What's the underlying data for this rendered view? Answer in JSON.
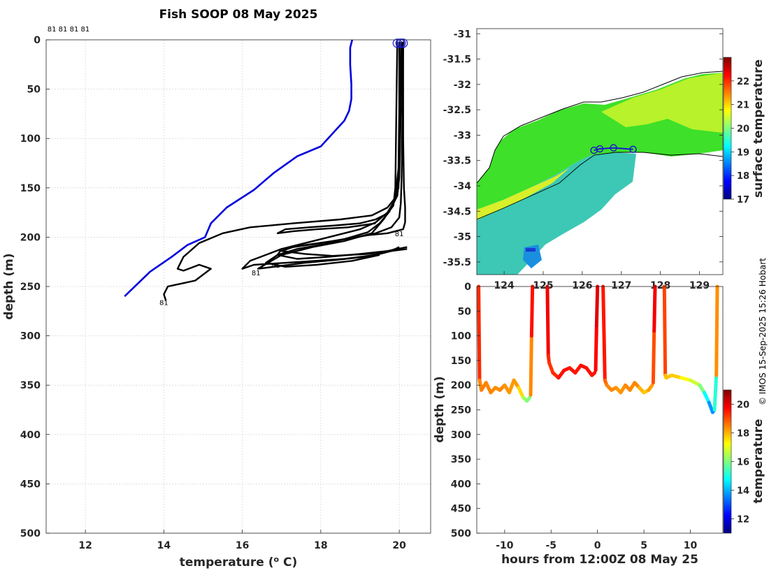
{
  "title": "Fish SOOP 08 May 2025",
  "credit": "© IMOS 15-Sep-2025 15:26 Hobart",
  "colors": {
    "climatology_line": "#0000dd",
    "profile_line": "#000000",
    "track_marker": "#1a1acc",
    "land": "#ffffff",
    "coast": "#000000"
  },
  "colormap": [
    "#00007f",
    "#0000ff",
    "#007fff",
    "#00ffff",
    "#7fff7f",
    "#ffff00",
    "#ff7f00",
    "#ff0000",
    "#7f0000"
  ],
  "chart_data": [
    {
      "id": "profile",
      "type": "line",
      "title": "Fish SOOP 08 May 2025",
      "xlabel": "temperature (o C)",
      "ylabel": "depth (m)",
      "xlim": [
        11,
        20.8
      ],
      "ylim": [
        500,
        0
      ],
      "xticks": [
        12,
        14,
        16,
        18,
        20
      ],
      "yticks": [
        0,
        50,
        100,
        150,
        200,
        250,
        300,
        350,
        400,
        450,
        500
      ],
      "grid": true,
      "top_label": "81 81 81 81",
      "profile_labels": [
        {
          "text": "81",
          "x": 14.0,
          "y": 266
        },
        {
          "text": "81",
          "x": 16.35,
          "y": 236
        },
        {
          "text": "81",
          "x": 16.85,
          "y": 228
        },
        {
          "text": "81",
          "x": 20.0,
          "y": 196
        }
      ],
      "series": [
        {
          "name": "climatology",
          "color": "#0000dd",
          "x": [
            18.8,
            18.75,
            18.75,
            18.78,
            18.78,
            18.72,
            18.6,
            18.3,
            18.0,
            17.4,
            16.8,
            16.3,
            15.6,
            15.2,
            15.05,
            14.6,
            14.2,
            13.65,
            13.0
          ],
          "y": [
            0,
            8,
            25,
            45,
            60,
            72,
            82,
            95,
            108,
            118,
            135,
            152,
            170,
            186,
            200,
            208,
            220,
            235,
            260
          ]
        },
        {
          "name": "profile-1",
          "color": "#000000",
          "x": [
            20.05,
            20.02,
            20.02,
            20.0,
            19.98,
            19.9,
            19.7,
            19.3,
            18.5,
            17.3,
            16.2,
            15.5,
            14.9,
            14.5,
            14.35,
            14.5,
            14.9,
            15.2,
            14.8,
            14.1,
            14.0,
            14.05
          ],
          "y": [
            2,
            40,
            100,
            130,
            150,
            160,
            170,
            178,
            182,
            186,
            190,
            196,
            206,
            220,
            232,
            234,
            228,
            232,
            244,
            250,
            258,
            264
          ]
        },
        {
          "name": "profile-2",
          "color": "#000000",
          "x": [
            20.05,
            20.03,
            20.0,
            19.95,
            19.85,
            19.7,
            19.4,
            19.0,
            18.2,
            17.0,
            16.2,
            16.0,
            16.3,
            17.5,
            18.6,
            19.4,
            19.8,
            20.0
          ],
          "y": [
            2,
            60,
            120,
            150,
            165,
            175,
            185,
            192,
            200,
            212,
            224,
            232,
            228,
            225,
            222,
            218,
            214,
            210
          ]
        },
        {
          "name": "profile-3",
          "color": "#000000",
          "x": [
            20.08,
            20.05,
            20.02,
            20.0,
            19.95,
            19.8,
            19.6,
            19.3,
            18.6,
            17.8,
            17.0,
            16.4,
            16.8,
            17.6,
            18.4,
            19.1,
            19.6,
            19.9
          ],
          "y": [
            2,
            50,
            110,
            140,
            158,
            170,
            182,
            196,
            204,
            210,
            218,
            232,
            230,
            226,
            223,
            220,
            216,
            212
          ]
        },
        {
          "name": "profile-4",
          "color": "#000000",
          "x": [
            20.0,
            20.0,
            19.98,
            19.9,
            19.75,
            19.5,
            19.2,
            18.6,
            18.1,
            17.4,
            16.9,
            16.6,
            17.1,
            17.9,
            18.8,
            19.5
          ],
          "y": [
            2,
            70,
            130,
            160,
            174,
            186,
            195,
            202,
            207,
            212,
            218,
            226,
            230,
            228,
            224,
            218
          ]
        },
        {
          "name": "profile-5",
          "color": "#000000",
          "x": [
            20.1,
            20.08,
            20.06,
            20.04,
            20.0,
            19.8,
            19.4,
            18.9,
            18.3,
            17.6,
            17.0,
            16.9,
            17.4,
            18.2,
            19.0,
            19.7,
            20.2
          ],
          "y": [
            2,
            80,
            140,
            166,
            180,
            190,
            196,
            200,
            204,
            208,
            212,
            218,
            222,
            220,
            217,
            214,
            210
          ]
        },
        {
          "name": "profile-6",
          "color": "#000000",
          "x": [
            20.1,
            20.1,
            20.12,
            20.15,
            20.15,
            20.1,
            19.7,
            19.2,
            18.6,
            18.0,
            17.3,
            17.0,
            17.6,
            18.3,
            19.2,
            19.8,
            20.2
          ],
          "y": [
            2,
            100,
            150,
            170,
            185,
            192,
            196,
            198,
            202,
            206,
            210,
            214,
            217,
            219,
            217,
            214,
            212
          ]
        },
        {
          "name": "profile-7",
          "color": "#000000",
          "x": [
            19.95,
            19.92,
            19.9,
            19.85,
            19.7,
            19.4,
            19.0,
            18.4,
            17.7,
            17.1,
            16.9,
            17.3,
            17.9,
            18.7,
            19.4
          ],
          "y": [
            2,
            90,
            150,
            168,
            176,
            182,
            186,
            188,
            190,
            192,
            196,
            194,
            192,
            190,
            186
          ]
        }
      ]
    },
    {
      "id": "map",
      "type": "heatmap",
      "ylim": [
        -35.75,
        -30.9
      ],
      "xlim": [
        123.3,
        129.6
      ],
      "yticks": [
        -31,
        -31.5,
        -32,
        -32.5,
        -33,
        -33.5,
        -34,
        -34.5,
        -35,
        -35.5
      ],
      "xticks": [
        124,
        125,
        126,
        127,
        128,
        129
      ],
      "colorbar_label": "surface temperature",
      "colorbar_range": [
        17,
        23
      ],
      "colorbar_ticks": [
        17,
        18,
        19,
        20,
        21,
        22
      ],
      "track": {
        "lon": [
          126.3,
          126.45,
          126.8,
          127.3
        ],
        "lat": [
          -33.3,
          -33.27,
          -33.25,
          -33.28
        ]
      }
    },
    {
      "id": "section",
      "type": "scatter",
      "xlabel": "hours from 12:00Z 08 May 25",
      "ylabel": "depth (m)",
      "xlim": [
        -13,
        13.5
      ],
      "ylim": [
        500,
        0
      ],
      "xticks": [
        -10,
        -5,
        0,
        5,
        10
      ],
      "yticks": [
        0,
        50,
        100,
        150,
        200,
        250,
        300,
        350,
        400,
        450,
        500
      ],
      "colorbar_label": "temperature",
      "colorbar_range": [
        11,
        21
      ],
      "colorbar_ticks": [
        12,
        14,
        16,
        18,
        20
      ],
      "series": [
        {
          "name": "cast-a",
          "hours": [
            -12.8,
            -12.7,
            -12.5,
            -12.0,
            -11.5,
            -11.0,
            -10.5,
            -10.0,
            -9.5,
            -9.0,
            -8.5,
            -8.0,
            -7.6,
            -7.3
          ],
          "depth": [
            0,
            190,
            210,
            195,
            215,
            205,
            210,
            200,
            215,
            190,
            205,
            225,
            232,
            225
          ]
        },
        {
          "name": "cast-b",
          "hours": [
            -7.2,
            -7.1,
            -7.0
          ],
          "depth": [
            220,
            100,
            0
          ]
        },
        {
          "name": "cast-c",
          "hours": [
            -5.4,
            -5.3,
            -5.2,
            -4.8,
            -4.2,
            -3.6,
            -3.0,
            -2.4,
            -1.8,
            -1.2,
            -0.6,
            -0.3
          ],
          "depth": [
            0,
            140,
            155,
            175,
            185,
            170,
            165,
            175,
            160,
            165,
            180,
            175
          ]
        },
        {
          "name": "cast-d",
          "hours": [
            -0.2,
            -0.1,
            0.0
          ],
          "depth": [
            170,
            80,
            0
          ]
        },
        {
          "name": "cast-e",
          "hours": [
            0.6,
            0.8,
            1.0,
            1.5,
            2.0,
            2.5,
            3.0,
            3.5,
            4.0,
            4.5,
            5.0,
            5.5,
            5.9
          ],
          "depth": [
            0,
            190,
            200,
            210,
            205,
            215,
            200,
            210,
            195,
            205,
            215,
            210,
            200
          ]
        },
        {
          "name": "cast-f",
          "hours": [
            6.0,
            6.1,
            6.2
          ],
          "depth": [
            195,
            90,
            0
          ]
        },
        {
          "name": "cast-g",
          "hours": [
            7.2,
            7.3,
            7.4,
            8.0,
            9.0,
            10.0,
            11.0,
            11.5,
            12.0,
            12.4,
            12.6,
            12.8,
            12.9
          ],
          "depth": [
            0,
            180,
            185,
            180,
            185,
            190,
            200,
            215,
            235,
            255,
            250,
            180,
            0
          ]
        }
      ],
      "temperatures": [
        [
          20.2,
          18.5,
          18.4,
          18.6,
          18.3,
          18.5,
          18.2,
          18.6,
          18.0,
          18.5,
          18.0,
          17.2,
          15.5,
          16.5
        ],
        [
          17.8,
          19.0,
          20.2
        ],
        [
          20.2,
          19.5,
          19.3,
          19.2,
          19.5,
          19.7,
          19.6,
          19.5,
          19.6,
          19.7,
          19.5,
          19.6
        ],
        [
          19.6,
          19.9,
          20.2
        ],
        [
          20.2,
          18.9,
          18.6,
          18.3,
          18.5,
          18.0,
          18.6,
          18.2,
          18.6,
          18.3,
          17.6,
          18.0,
          18.4
        ],
        [
          18.5,
          19.5,
          20.2
        ],
        [
          20.2,
          18.0,
          17.8,
          17.9,
          17.6,
          17.0,
          16.5,
          15.5,
          14.0,
          13.5,
          13.8,
          16.5,
          20.2
        ]
      ]
    }
  ]
}
